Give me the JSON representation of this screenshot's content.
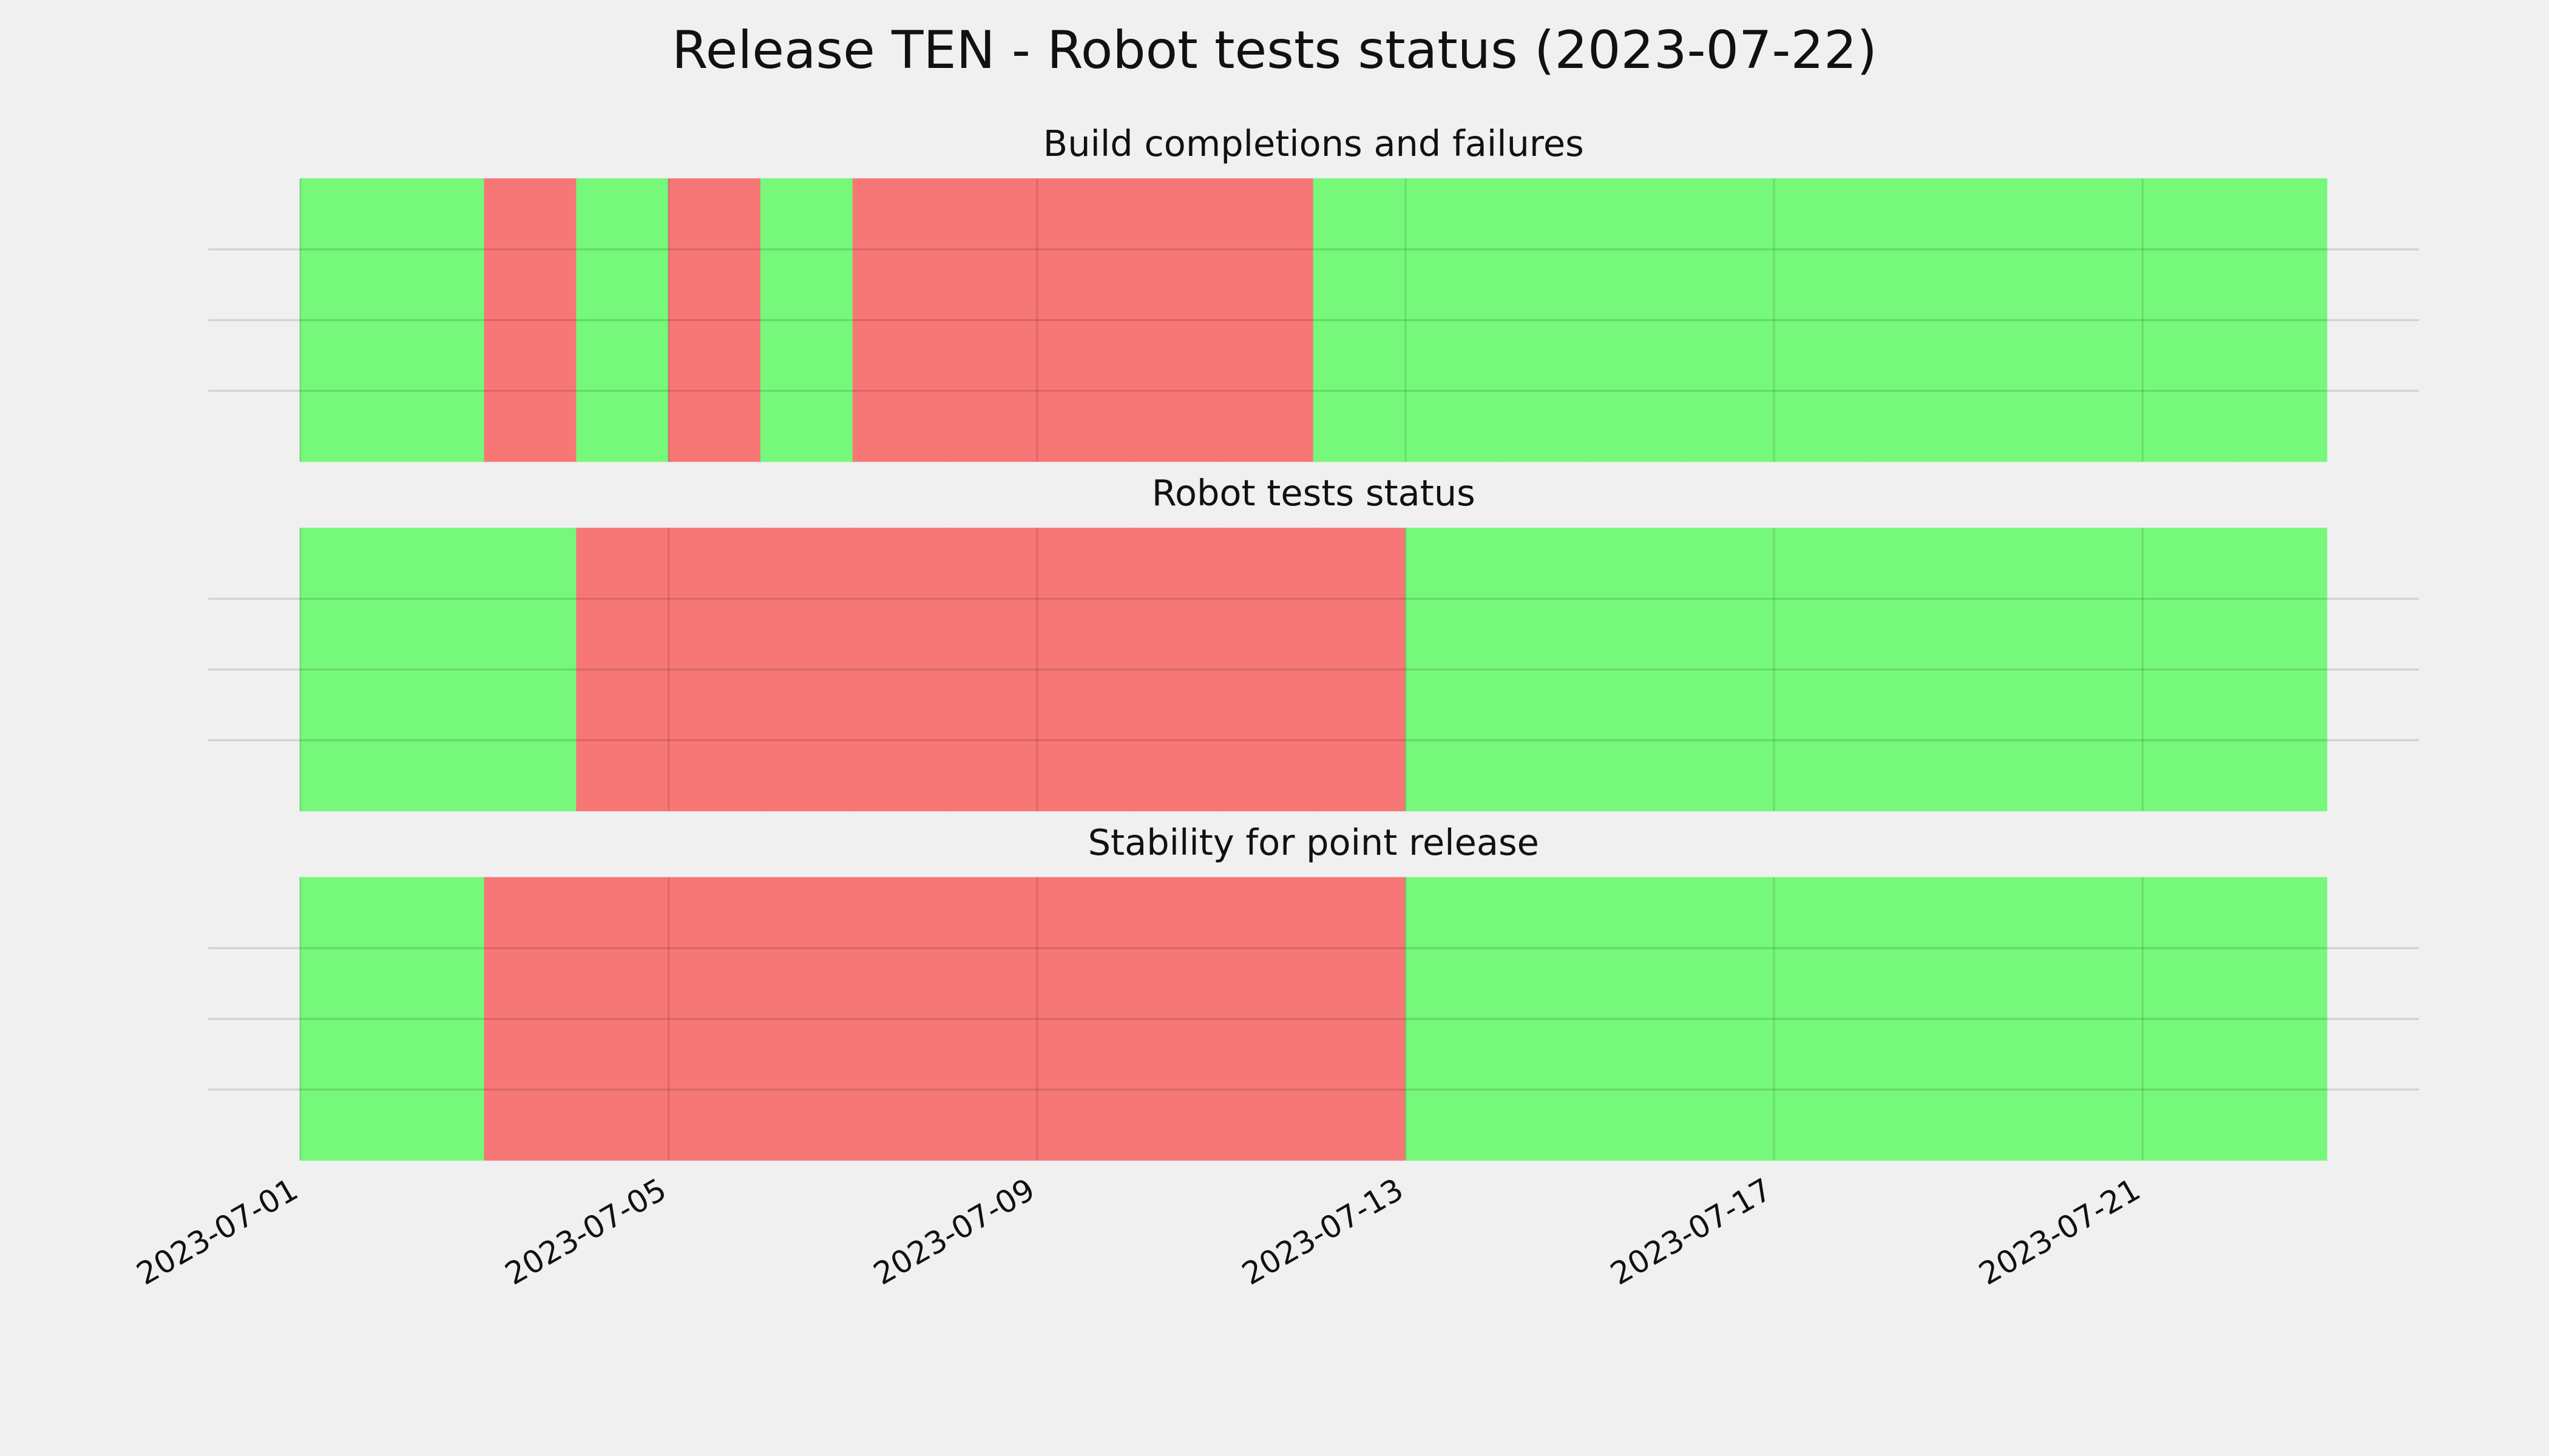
{
  "title": "Release TEN - Robot tests status (2023-07-22)",
  "chart_data": [
    {
      "type": "timeline",
      "title": "Build completions and failures",
      "x": [
        "2023-07-01",
        "2023-07-02",
        "2023-07-03",
        "2023-07-04",
        "2023-07-05",
        "2023-07-06",
        "2023-07-07",
        "2023-07-08",
        "2023-07-09",
        "2023-07-10",
        "2023-07-11",
        "2023-07-12",
        "2023-07-13",
        "2023-07-14",
        "2023-07-15",
        "2023-07-16",
        "2023-07-17",
        "2023-07-18",
        "2023-07-19",
        "2023-07-20",
        "2023-07-21",
        "2023-07-22"
      ],
      "values": [
        1,
        1,
        0,
        1,
        0,
        1,
        0,
        0,
        0,
        0,
        0,
        1,
        1,
        1,
        1,
        1,
        1,
        1,
        1,
        1,
        1,
        1
      ],
      "colors": [
        "#f77777",
        "#76f87a"
      ],
      "xlim": [
        "2023-06-30",
        "2023-07-24"
      ],
      "ylim": [
        0,
        1
      ],
      "yticks": [
        0.25,
        0.5,
        0.75
      ],
      "grid": true
    },
    {
      "type": "timeline",
      "title": "Robot tests status",
      "x": [
        "2023-07-01",
        "2023-07-02",
        "2023-07-03",
        "2023-07-04",
        "2023-07-05",
        "2023-07-06",
        "2023-07-07",
        "2023-07-08",
        "2023-07-09",
        "2023-07-10",
        "2023-07-11",
        "2023-07-12",
        "2023-07-13",
        "2023-07-14",
        "2023-07-15",
        "2023-07-16",
        "2023-07-17",
        "2023-07-18",
        "2023-07-19",
        "2023-07-20",
        "2023-07-21",
        "2023-07-22"
      ],
      "values": [
        1,
        1,
        1,
        0,
        0,
        0,
        0,
        0,
        0,
        0,
        0,
        0,
        1,
        1,
        1,
        1,
        1,
        1,
        1,
        1,
        1,
        1
      ],
      "colors": [
        "#f77777",
        "#76f87a"
      ],
      "xlim": [
        "2023-06-30",
        "2023-07-24"
      ],
      "ylim": [
        0,
        1
      ],
      "yticks": [
        0.25,
        0.5,
        0.75
      ],
      "grid": true
    },
    {
      "type": "timeline",
      "title": "Stability for point release",
      "x": [
        "2023-07-01",
        "2023-07-02",
        "2023-07-03",
        "2023-07-04",
        "2023-07-05",
        "2023-07-06",
        "2023-07-07",
        "2023-07-08",
        "2023-07-09",
        "2023-07-10",
        "2023-07-11",
        "2023-07-12",
        "2023-07-13",
        "2023-07-14",
        "2023-07-15",
        "2023-07-16",
        "2023-07-17",
        "2023-07-18",
        "2023-07-19",
        "2023-07-20",
        "2023-07-21",
        "2023-07-22"
      ],
      "values": [
        1,
        1,
        0,
        0,
        0,
        0,
        0,
        0,
        0,
        0,
        0,
        0,
        1,
        1,
        1,
        1,
        1,
        1,
        1,
        1,
        1,
        1
      ],
      "colors": [
        "#f77777",
        "#76f87a"
      ],
      "xlim": [
        "2023-06-30",
        "2023-07-24"
      ],
      "ylim": [
        0,
        1
      ],
      "yticks": [
        0.25,
        0.5,
        0.75
      ],
      "grid": true,
      "xticks": [
        "2023-07-01",
        "2023-07-05",
        "2023-07-09",
        "2023-07-13",
        "2023-07-17",
        "2023-07-21"
      ]
    }
  ]
}
